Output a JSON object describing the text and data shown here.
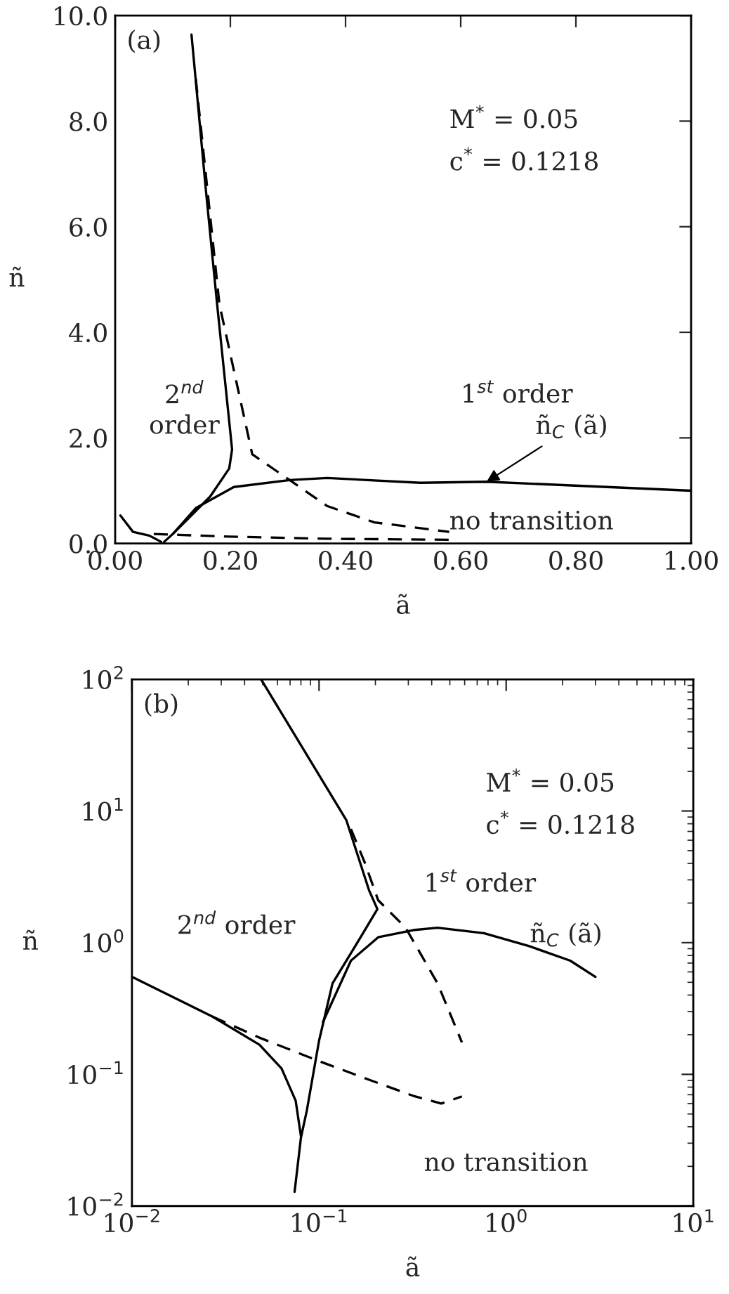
{
  "chart_data": [
    {
      "type": "line",
      "xlabel": "ã",
      "ylabel": "ñ",
      "xlim": [
        0,
        1.0
      ],
      "ylim": [
        0,
        10.0
      ],
      "xticks": [
        {
          "value": 0,
          "label": "0.00"
        },
        {
          "value": 0.2,
          "label": "0.20"
        },
        {
          "value": 0.4,
          "label": "0.40"
        },
        {
          "value": 0.6,
          "label": "0.60"
        },
        {
          "value": 0.8,
          "label": "0.80"
        },
        {
          "value": 1.0,
          "label": "1.00"
        }
      ],
      "yticks": [
        {
          "value": 0,
          "label": "0.0"
        },
        {
          "value": 2,
          "label": "2.0"
        },
        {
          "value": 4,
          "label": "4.0"
        },
        {
          "value": 6,
          "label": "6.0"
        },
        {
          "value": 8,
          "label": "8.0"
        },
        {
          "value": 10,
          "label": "10.0"
        }
      ],
      "grid": false,
      "legend": false,
      "series": [
        {
          "color": "#000000",
          "line_style": "solid",
          "x": [
            0.1325,
            0.157,
            0.177,
            0.198,
            0.203,
            0.198,
            0.165,
            0.124,
            0.1,
            0.085
          ],
          "values": [
            9.64,
            6.75,
            4.53,
            2.31,
            1.78,
            1.42,
            0.89,
            0.44,
            0.18,
            0.03
          ]
        },
        {
          "color": "#000000",
          "line_style": "solid",
          "x": [
            0.009,
            0.031,
            0.059,
            0.08
          ],
          "values": [
            0.53,
            0.22,
            0.15,
            0.03
          ]
        },
        {
          "color": "#000000",
          "line_style": "solid",
          "x": [
            0.1,
            0.14,
            0.206,
            0.303,
            0.368,
            0.53,
            0.645,
            1.0
          ],
          "values": [
            0.18,
            0.67,
            1.07,
            1.2,
            1.24,
            1.15,
            1.17,
            1.0
          ]
        },
        {
          "color": "#000000",
          "line_style": "dashed",
          "x": [
            0.14,
            0.181,
            0.238,
            0.303,
            0.368,
            0.45,
            0.58
          ],
          "values": [
            8.8,
            4.53,
            1.69,
            1.2,
            0.71,
            0.4,
            0.22
          ]
        },
        {
          "color": "#000000",
          "line_style": "dashed",
          "x": [
            0.067,
            0.198,
            0.368,
            0.58
          ],
          "values": [
            0.18,
            0.13,
            0.09,
            0.07
          ]
        }
      ],
      "annotations": [
        "(a)",
        "M$^{*}$ = 0.05",
        "c$^{*}$ = 0.1218",
        "2$^{nd}$\norder",
        "1$^{st}$ order",
        {
          "text": "ñ$_{C}$ (ã)",
          "x": 0.645,
          "y": 1.17
        },
        "no transition"
      ]
    },
    {
      "type": "line",
      "xlabel": "ã",
      "ylabel": "ñ",
      "log": "xy",
      "xlim": [
        0.01,
        10
      ],
      "ylim": [
        0.01,
        100
      ],
      "xticks": [
        {
          "value": 0.01,
          "label": "10$^{−2}$"
        },
        {
          "value": 0.1,
          "label": "10$^{−1}$"
        },
        {
          "value": 1,
          "label": "10$^{0}$"
        },
        {
          "value": 10,
          "label": "10$^{1}$"
        }
      ],
      "yticks": [
        {
          "value": 0.01,
          "label": "10$^{−2}$"
        },
        {
          "value": 0.1,
          "label": "10$^{−1}$"
        },
        {
          "value": 1,
          "label": "10$^{0}$"
        },
        {
          "value": 10,
          "label": "10$^{1}$"
        },
        {
          "value": 100,
          "label": "10$^{2}$"
        }
      ],
      "grid": false,
      "legend": false,
      "series": [
        {
          "color": "#000000",
          "line_style": "solid",
          "x": [
            0.049,
            0.14,
            0.185,
            0.205,
            0.156,
            0.118,
            0.1,
            0.086,
            0.08,
            0.074
          ],
          "values": [
            100,
            8.5,
            2.5,
            1.8,
            0.94,
            0.49,
            0.18,
            0.053,
            0.033,
            0.0128
          ]
        },
        {
          "color": "#000000",
          "line_style": "solid",
          "x": [
            0.01,
            0.027,
            0.048,
            0.063,
            0.075,
            0.08
          ],
          "values": [
            0.55,
            0.274,
            0.168,
            0.111,
            0.063,
            0.034
          ]
        },
        {
          "color": "#000000",
          "line_style": "solid",
          "x": [
            0.105,
            0.148,
            0.207,
            0.325,
            0.43,
            0.76,
            1.33,
            2.2,
            3.0
          ],
          "values": [
            0.25,
            0.73,
            1.1,
            1.25,
            1.3,
            1.18,
            0.94,
            0.73,
            0.55
          ]
        },
        {
          "color": "#000000",
          "line_style": "dashed",
          "x": [
            0.148,
            0.175,
            0.207,
            0.29,
            0.43,
            0.58
          ],
          "values": [
            7.3,
            4.1,
            2.1,
            1.3,
            0.49,
            0.175
          ]
        },
        {
          "color": "#000000",
          "line_style": "dashed",
          "x": [
            0.027,
            0.048,
            0.1,
            0.185,
            0.325,
            0.45,
            0.58
          ],
          "values": [
            0.274,
            0.19,
            0.126,
            0.091,
            0.068,
            0.06,
            0.068
          ]
        }
      ],
      "annotations": [
        "(b)",
        "M$^{*}$ = 0.05",
        "c$^{*}$ = 0.1218",
        "2$^{nd}$ order",
        "1$^{st}$ order",
        {
          "text": "ñ$_{C}$ (ã)",
          "x": 3.0,
          "y": 0.55
        },
        "no transition"
      ]
    }
  ]
}
